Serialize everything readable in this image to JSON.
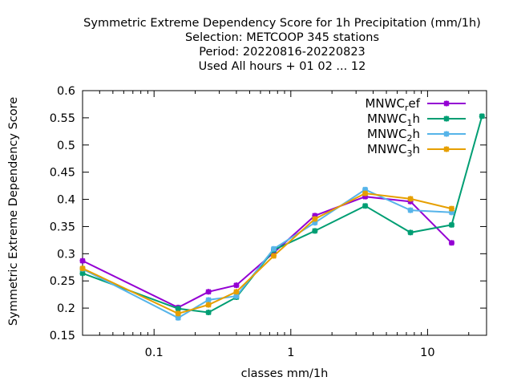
{
  "chart_data": {
    "type": "line",
    "title_lines": [
      "Symmetric Extreme Dependency Score  for 1h Precipitation (mm/1h)",
      "Selection: METCOOP    345 stations",
      "Period: 20220816-20220823",
      "Used  All hours + 01 02 ... 12"
    ],
    "xlabel": "classes mm/1h",
    "ylabel": "Symmetric Extreme Dependency Score",
    "xscale": "log",
    "xlim": [
      0.03,
      27
    ],
    "ylim": [
      0.15,
      0.6
    ],
    "xticks": [
      {
        "value": 0.1,
        "label": "0.1"
      },
      {
        "value": 1,
        "label": "1"
      },
      {
        "value": 10,
        "label": "10"
      }
    ],
    "yticks": [
      {
        "value": 0.15,
        "label": "0.15"
      },
      {
        "value": 0.2,
        "label": "0.2"
      },
      {
        "value": 0.25,
        "label": "0.25"
      },
      {
        "value": 0.3,
        "label": "0.3"
      },
      {
        "value": 0.35,
        "label": "0.35"
      },
      {
        "value": 0.4,
        "label": "0.4"
      },
      {
        "value": 0.45,
        "label": "0.45"
      },
      {
        "value": 0.5,
        "label": "0.5"
      },
      {
        "value": 0.55,
        "label": "0.55"
      },
      {
        "value": 0.6,
        "label": "0.6"
      }
    ],
    "grid": false,
    "legend_position": "top-right",
    "series": [
      {
        "name": "MNWC_ref",
        "legend_base": "MNWC",
        "legend_sub": "r",
        "legend_tail": "ef",
        "color": "#9400d3",
        "x": [
          0.03,
          0.15,
          0.25,
          0.4,
          0.75,
          1.5,
          3.5,
          7.5,
          15
        ],
        "y": [
          0.287,
          0.201,
          0.23,
          0.242,
          0.302,
          0.37,
          0.405,
          0.396,
          0.32
        ]
      },
      {
        "name": "MNWC_1h",
        "legend_base": "MNWC",
        "legend_sub": "1",
        "legend_tail": "h",
        "color": "#009e73",
        "x": [
          0.03,
          0.15,
          0.25,
          0.4,
          0.75,
          1.5,
          3.5,
          7.5,
          15,
          25
        ],
        "y": [
          0.264,
          0.199,
          0.192,
          0.22,
          0.307,
          0.342,
          0.388,
          0.339,
          0.353,
          0.553
        ]
      },
      {
        "name": "MNWC_2h",
        "legend_base": "MNWC",
        "legend_sub": "2",
        "legend_tail": "h",
        "color": "#56b4e9",
        "x": [
          0.03,
          0.15,
          0.25,
          0.4,
          0.75,
          1.5,
          3.5,
          7.5,
          15
        ],
        "y": [
          0.272,
          0.182,
          0.215,
          0.222,
          0.309,
          0.357,
          0.418,
          0.38,
          0.376
        ]
      },
      {
        "name": "MNWC_3h",
        "legend_base": "MNWC",
        "legend_sub": "3",
        "legend_tail": "h",
        "color": "#e69f00",
        "x": [
          0.03,
          0.15,
          0.25,
          0.4,
          0.75,
          1.5,
          3.5,
          7.5,
          15
        ],
        "y": [
          0.273,
          0.19,
          0.206,
          0.23,
          0.296,
          0.364,
          0.411,
          0.401,
          0.383
        ]
      }
    ]
  }
}
